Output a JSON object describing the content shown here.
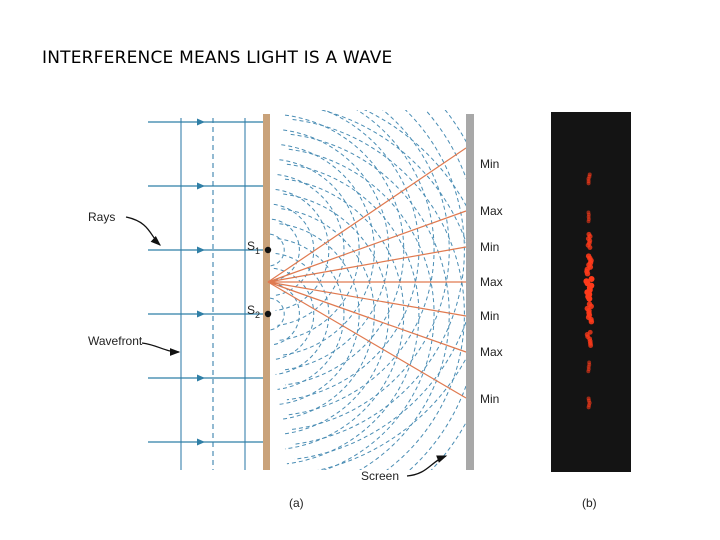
{
  "slide": {
    "title": "INTERFERENCE MEANS LIGHT IS A WAVE"
  },
  "figure": {
    "labels": {
      "rays": "Rays",
      "wavefront": "Wavefront",
      "s1": "S",
      "s1_sub": "1",
      "s2": "S",
      "s2_sub": "2",
      "screen": "Screen",
      "panel_a": "(a)",
      "panel_b": "(b)"
    },
    "fringe_labels": [
      "Min",
      "Max",
      "Min",
      "Max",
      "Min",
      "Max",
      "Min"
    ],
    "colors": {
      "wave": "#4a8db4",
      "ray": "#e07a50",
      "barrier": "#c9a27a",
      "screen": "#a8a8a8",
      "photo_bg": "#141414",
      "fringe": "#ff3a1a"
    },
    "fringe_brightness": [
      0.3,
      0.25,
      0.6,
      0.8,
      1.0,
      0.8,
      0.6,
      0.25,
      0.3
    ]
  }
}
